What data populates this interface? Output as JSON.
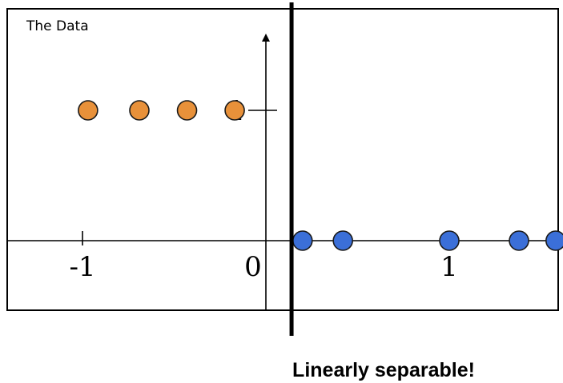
{
  "chart_data": {
    "type": "scatter",
    "title": "The Data",
    "caption": "Linearly separable!",
    "xlim": [
      -1.25,
      1.75
    ],
    "ylim": [
      -0.55,
      1.6
    ],
    "x_ticks": [
      {
        "value": -1,
        "label": "-1"
      },
      {
        "value": 0,
        "label": "0"
      },
      {
        "value": 1,
        "label": "1"
      }
    ],
    "y_ticks": [
      {
        "value": 1,
        "label": "1"
      }
    ],
    "separator_x": 0.14,
    "series": [
      {
        "color": "#E8913A",
        "points": [
          {
            "x": -0.97,
            "y": 1
          },
          {
            "x": -0.69,
            "y": 1
          },
          {
            "x": -0.43,
            "y": 1
          },
          {
            "x": -0.17,
            "y": 1
          }
        ]
      },
      {
        "color": "#3B6FD8",
        "points": [
          {
            "x": 0.2,
            "y": 0
          },
          {
            "x": 0.42,
            "y": 0
          },
          {
            "x": 1.0,
            "y": 0
          },
          {
            "x": 1.38,
            "y": 0
          },
          {
            "x": 1.58,
            "y": 0
          }
        ]
      }
    ],
    "grid": false,
    "legend": "none"
  }
}
